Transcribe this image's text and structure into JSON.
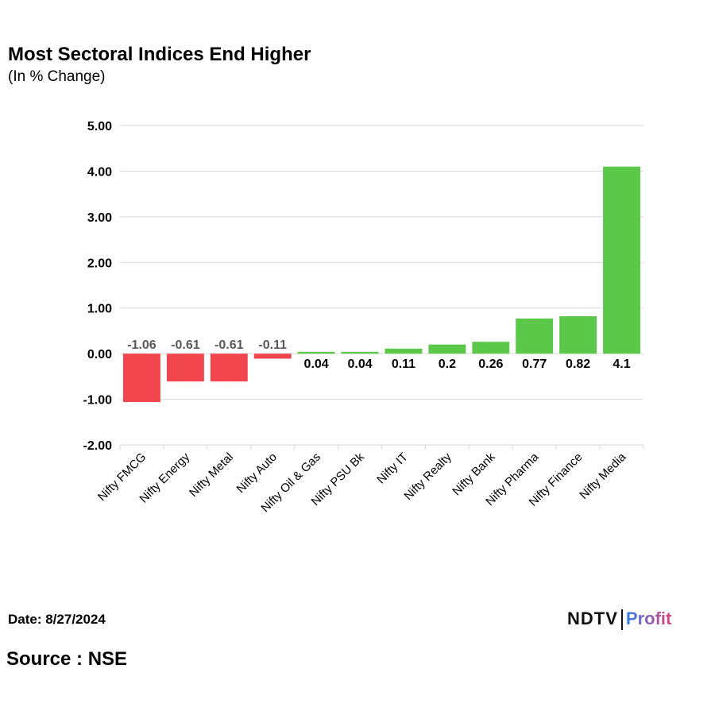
{
  "chart_data": {
    "type": "bar",
    "title": "Most Sectoral Indices End Higher",
    "subtitle": "(In % Change)",
    "categories": [
      "Nifty FMCG",
      "Nifty Energy",
      "Nifty Metal",
      "Nifty Auto",
      "Nifty Oil & Gas",
      "Nifty PSU Bk",
      "Nifty IT",
      "Nifty Realty",
      "Nifty Bank",
      "Nifty Pharma",
      "Nifty Finance",
      "Nifty Media"
    ],
    "values": [
      -1.06,
      -0.61,
      -0.61,
      -0.11,
      0.04,
      0.04,
      0.11,
      0.2,
      0.26,
      0.77,
      0.82,
      4.1
    ],
    "data_labels": [
      "-1.06",
      "-0.61",
      "-0.61",
      "-0.11",
      "0.04",
      "0.04",
      "0.11",
      "0.2",
      "0.26",
      "0.77",
      "0.82",
      "4.1"
    ],
    "ylim": [
      -2,
      5
    ],
    "yticks": [
      "-2.00",
      "-1.00",
      "0.00",
      "1.00",
      "2.00",
      "3.00",
      "4.00",
      "5.00"
    ],
    "grid": true,
    "legend": "none",
    "colors": {
      "positive": "#5cc84a",
      "negative": "#f2464f"
    }
  },
  "footer": {
    "date": "Date: 8/27/2024",
    "source": "Source : NSE"
  },
  "logo": {
    "ndtv": "NDTV",
    "profit": "Profit"
  }
}
